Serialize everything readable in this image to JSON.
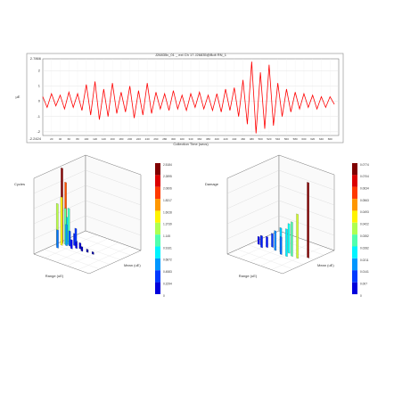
{
  "chart_data": [
    {
      "type": "line",
      "title": "J26835v_01 _ ext Ch 17 J26835@Bolt RN_1",
      "ylabel": "µE",
      "xlabel": "Collection Time (secs)",
      "color": "#ff0000",
      "xlim": [
        0,
        680
      ],
      "xticks": [
        20,
        40,
        60,
        80,
        100,
        120,
        140,
        160,
        180,
        200,
        220,
        240,
        260,
        280,
        300,
        320,
        340,
        360,
        380,
        400,
        420,
        440,
        460,
        480,
        500,
        520,
        540,
        560,
        580,
        600,
        620,
        640,
        660
      ],
      "ylim": [
        -2.2424,
        2.7866
      ],
      "yticks": [
        -2,
        -1,
        0,
        1,
        2
      ],
      "grid": true,
      "x": [
        0,
        10,
        20,
        30,
        40,
        50,
        60,
        70,
        80,
        90,
        100,
        110,
        120,
        130,
        140,
        150,
        160,
        170,
        180,
        190,
        200,
        210,
        220,
        230,
        240,
        250,
        260,
        270,
        280,
        290,
        300,
        310,
        320,
        330,
        340,
        350,
        360,
        370,
        380,
        390,
        400,
        410,
        420,
        430,
        440,
        450,
        460,
        470,
        480,
        490,
        500,
        510,
        520,
        530,
        540,
        550,
        560,
        570,
        580,
        590,
        600,
        610,
        620,
        630,
        640,
        650,
        660,
        670
      ],
      "values": [
        0.3,
        -0.4,
        0.5,
        -0.3,
        0.4,
        -0.5,
        0.6,
        -0.4,
        0.5,
        -0.6,
        1.1,
        -0.9,
        1.3,
        -1.2,
        0.8,
        -1.0,
        1.2,
        -0.8,
        0.6,
        -0.7,
        1.0,
        -1.1,
        0.7,
        -0.9,
        1.2,
        -0.8,
        0.6,
        -0.5,
        0.5,
        -0.6,
        0.7,
        -0.5,
        0.4,
        -0.6,
        0.5,
        -0.4,
        0.6,
        -0.5,
        0.4,
        -0.6,
        0.5,
        -0.7,
        0.8,
        -0.6,
        0.9,
        -1.0,
        1.4,
        -1.5,
        2.6,
        -2.1,
        1.9,
        -1.8,
        2.4,
        -1.6,
        1.2,
        -1.0,
        0.8,
        -0.7,
        0.6,
        -0.5,
        0.5,
        -0.4,
        0.4,
        -0.5,
        0.3,
        -0.4,
        0.3,
        -0.2
      ]
    },
    {
      "type": "bar3d",
      "title": "Cycles",
      "xlabel": "Range (uE)",
      "ylabel": "Mean (uE)",
      "zlabel": "Cycles",
      "zlim": [
        0,
        2.5184
      ],
      "colorbar_ticks": [
        2.5184,
        2.2895,
        2.0606,
        1.8317,
        1.6028,
        1.3739,
        1.145,
        0.9161,
        0.6872,
        0.4583,
        0.2294,
        0
      ],
      "range": [
        0.04,
        0.06,
        0.08,
        0.1,
        0.12,
        0.05,
        0.07,
        0.14,
        0.18,
        0.22,
        0.26,
        0.3,
        0.35,
        0.42,
        0.5,
        0.6,
        0.1,
        0.15
      ],
      "mean": [
        0.5,
        0.55,
        0.45,
        0.5,
        0.52,
        0.4,
        0.6,
        0.48,
        0.5,
        0.55,
        0.45,
        0.5,
        0.52,
        0.48,
        0.5,
        0.5,
        0.35,
        0.65
      ],
      "values": [
        2.5,
        2.0,
        1.6,
        1.2,
        0.9,
        1.4,
        1.1,
        0.7,
        0.5,
        0.4,
        0.3,
        0.25,
        0.2,
        0.15,
        0.1,
        0.08,
        0.6,
        0.45
      ]
    },
    {
      "type": "bar3d",
      "title": "Damage",
      "xlabel": "Range (uE)",
      "ylabel": "Mean (uE)",
      "zlabel": "Damage",
      "zlim": [
        0,
        0.0774
      ],
      "colorbar_ticks": [
        0.0774,
        0.0704,
        0.0634,
        0.0563,
        0.0493,
        0.0422,
        0.0352,
        0.0282,
        0.0211,
        0.0141,
        0.007,
        0
      ],
      "range": [
        0.1,
        0.15,
        0.2,
        0.25,
        0.3,
        0.4,
        0.5,
        0.6,
        0.7,
        0.8,
        0.9,
        0.55,
        0.65
      ],
      "mean": [
        0.5,
        0.5,
        0.45,
        0.5,
        0.55,
        0.5,
        0.5,
        0.55,
        0.5,
        0.5,
        0.6,
        0.45,
        0.45
      ],
      "values": [
        0.008,
        0.01,
        0.012,
        0.011,
        0.014,
        0.02,
        0.025,
        0.03,
        0.035,
        0.045,
        0.077,
        0.018,
        0.028
      ]
    }
  ]
}
